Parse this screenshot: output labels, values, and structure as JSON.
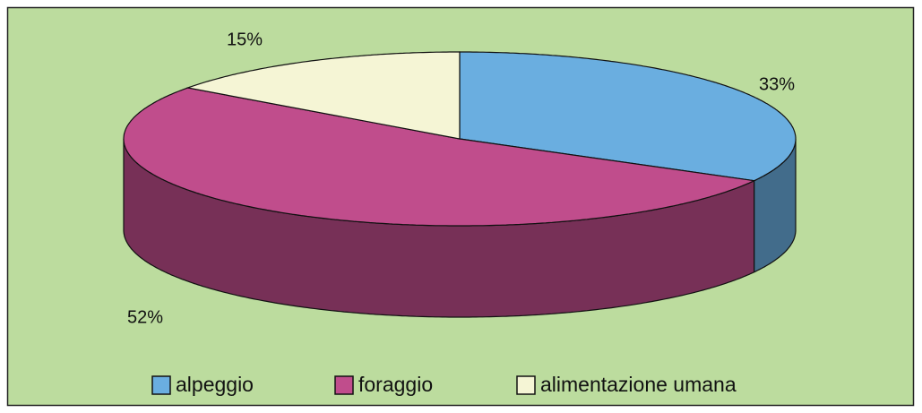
{
  "chart_data": {
    "type": "pie",
    "categories": [
      "alpeggio",
      "foraggio",
      "alimentazione umana"
    ],
    "values": [
      33,
      52,
      15
    ],
    "value_labels": [
      "33%",
      "52%",
      "15%"
    ],
    "colors": [
      "#6aaee0",
      "#c04d8c",
      "#f5f5d5"
    ],
    "legend": "bottom"
  }
}
